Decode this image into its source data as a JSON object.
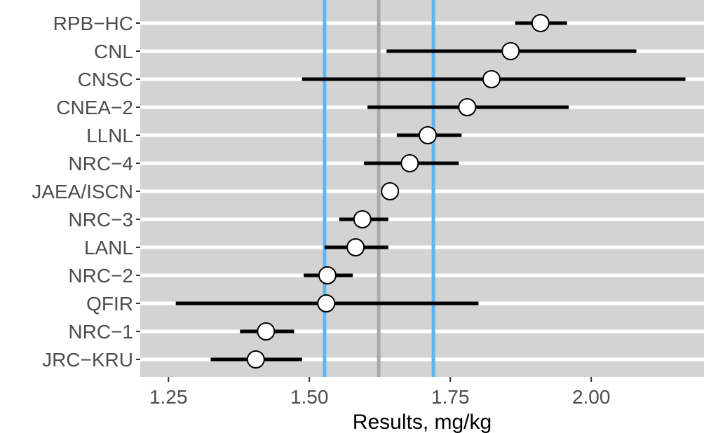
{
  "chart_data": {
    "type": "forest",
    "xlabel": "Results, mg/kg",
    "ylabel": "",
    "title": "",
    "xlim": [
      1.2,
      2.2
    ],
    "xticks": [
      1.25,
      1.5,
      1.75,
      2.0
    ],
    "xtick_labels": [
      "1.25",
      "1.50",
      "1.75",
      "2.00"
    ],
    "grid": true,
    "colors": {
      "panel": "#d3d3d3",
      "gridline": "#ffffff",
      "band_line": "#5fb4f5",
      "center_line": "#a9a9a9",
      "errorbar": "#000000",
      "point_fill": "#ffffff",
      "point_stroke": "#000000"
    },
    "reference_lines": [
      {
        "role": "band-lower",
        "x": 1.527
      },
      {
        "role": "center",
        "x": 1.623
      },
      {
        "role": "band-upper",
        "x": 1.72
      }
    ],
    "points": [
      {
        "label": "RPB−HC",
        "value": 1.91,
        "lower": 1.865,
        "upper": 1.957
      },
      {
        "label": "CNL",
        "value": 1.857,
        "lower": 1.637,
        "upper": 2.08
      },
      {
        "label": "CNSC",
        "value": 1.823,
        "lower": 1.487,
        "upper": 2.167
      },
      {
        "label": "CNEA−2",
        "value": 1.78,
        "lower": 1.603,
        "upper": 1.96
      },
      {
        "label": "LLNL",
        "value": 1.71,
        "lower": 1.655,
        "upper": 1.77
      },
      {
        "label": "NRC−4",
        "value": 1.678,
        "lower": 1.597,
        "upper": 1.765
      },
      {
        "label": "JAEA/ISCN",
        "value": 1.643,
        "lower": 1.643,
        "upper": 1.643
      },
      {
        "label": "NRC−3",
        "value": 1.594,
        "lower": 1.553,
        "upper": 1.64
      },
      {
        "label": "LANL",
        "value": 1.582,
        "lower": 1.527,
        "upper": 1.64
      },
      {
        "label": "NRC−2",
        "value": 1.532,
        "lower": 1.49,
        "upper": 1.577
      },
      {
        "label": "QFIR",
        "value": 1.53,
        "lower": 1.263,
        "upper": 1.8
      },
      {
        "label": "NRC−1",
        "value": 1.423,
        "lower": 1.377,
        "upper": 1.473
      },
      {
        "label": "JRC−KRU",
        "value": 1.405,
        "lower": 1.325,
        "upper": 1.487
      }
    ]
  }
}
